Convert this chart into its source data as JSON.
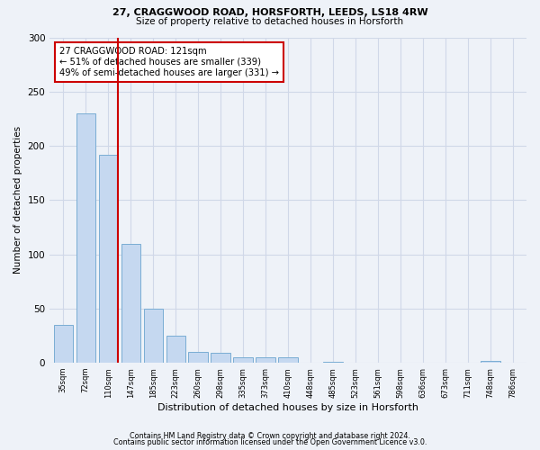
{
  "title1": "27, CRAGGWOOD ROAD, HORSFORTH, LEEDS, LS18 4RW",
  "title2": "Size of property relative to detached houses in Horsforth",
  "xlabel": "Distribution of detached houses by size in Horsforth",
  "ylabel": "Number of detached properties",
  "bar_labels": [
    "35sqm",
    "72sqm",
    "110sqm",
    "147sqm",
    "185sqm",
    "223sqm",
    "260sqm",
    "298sqm",
    "335sqm",
    "373sqm",
    "410sqm",
    "448sqm",
    "485sqm",
    "523sqm",
    "561sqm",
    "598sqm",
    "636sqm",
    "673sqm",
    "711sqm",
    "748sqm",
    "786sqm"
  ],
  "bar_values": [
    35,
    230,
    192,
    110,
    50,
    25,
    10,
    9,
    5,
    5,
    5,
    0,
    1,
    0,
    0,
    0,
    0,
    0,
    0,
    2,
    0
  ],
  "bar_color": "#c5d8f0",
  "bar_edgecolor": "#7aadd4",
  "grid_color": "#d0d8e8",
  "bg_color": "#eef2f8",
  "annotation_text": "27 CRAGGWOOD ROAD: 121sqm\n← 51% of detached houses are smaller (339)\n49% of semi-detached houses are larger (331) →",
  "annotation_box_color": "#ffffff",
  "annotation_box_edgecolor": "#cc0000",
  "ylim": [
    0,
    300
  ],
  "yticks": [
    0,
    50,
    100,
    150,
    200,
    250,
    300
  ],
  "footer1": "Contains HM Land Registry data © Crown copyright and database right 2024.",
  "footer2": "Contains public sector information licensed under the Open Government Licence v3.0."
}
